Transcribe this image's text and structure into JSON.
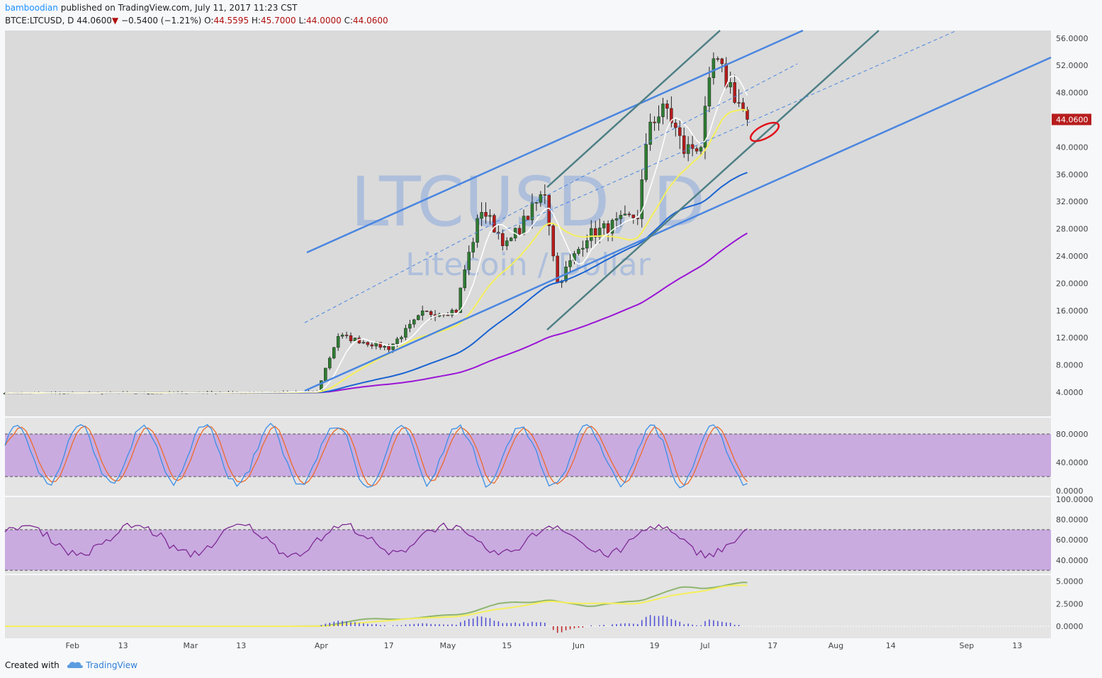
{
  "header": {
    "user": "bamboodian",
    "published_text": "published on TradingView.com, July 11, 2017 11:23 CST",
    "symbol": "BTCE:LTCUSD, D",
    "price": "44.0600",
    "change": "−0.5400 (−1.21%)",
    "o_label": "O:",
    "o": "44.5595",
    "h_label": "H:",
    "h": "45.7000",
    "l_label": "L:",
    "l": "44.0000",
    "c_label": "C:",
    "c": "44.0600"
  },
  "footer": {
    "created_with": "Created with",
    "brand": "TradingView"
  },
  "watermark": {
    "title": "LTCUSD, D",
    "subtitle": "Litecoin / Dollar"
  },
  "colors": {
    "bg_plot": "#dadada",
    "up": "#2e7d32",
    "down": "#b71c1c",
    "trend_blue": "#4a86e0",
    "trend_teal": "#4e7f85",
    "ma_white": "#ffffff",
    "ma_yellow": "#f5ef5c",
    "ma_blue": "#1a63d1",
    "ma_purple": "#9a14d6",
    "band_fill": "#c9abe0",
    "stoch_k": "#3a8ee6",
    "stoch_d": "#ee6a2a",
    "rsi": "#7e2a94",
    "annotation": "#e0101a"
  },
  "chart_data": [
    {
      "type": "candlestick",
      "title": "BTCE:LTCUSD, D",
      "x_tick_labels": [
        "Feb",
        "13",
        "Mar",
        "13",
        "Apr",
        "17",
        "May",
        "15",
        "Jun",
        "19",
        "Jul",
        "17",
        "Aug",
        "14",
        "Sep",
        "13"
      ],
      "y_tick_labels": [
        "56.0000",
        "52.0000",
        "48.0000",
        "40.0000",
        "36.0000",
        "32.0000",
        "28.0000",
        "24.0000",
        "20.0000",
        "16.0000",
        "12.0000",
        "8.0000",
        "4.0000"
      ],
      "last_price_label": "44.0600",
      "ylim": [
        0,
        57
      ],
      "date_range": [
        "2017-01-16",
        "2017-07-11"
      ],
      "approx_closes_by_month": [
        {
          "date": "2017-01-20",
          "close": 3.9
        },
        {
          "date": "2017-02-20",
          "close": 3.9
        },
        {
          "date": "2017-03-20",
          "close": 4.0
        },
        {
          "date": "2017-03-31",
          "close": 4.1
        },
        {
          "date": "2017-04-02",
          "close": 7.5
        },
        {
          "date": "2017-04-05",
          "close": 12.3
        },
        {
          "date": "2017-04-17",
          "close": 10.5
        },
        {
          "date": "2017-04-25",
          "close": 15.5
        },
        {
          "date": "2017-05-03",
          "close": 16.0
        },
        {
          "date": "2017-05-05",
          "close": 22.0
        },
        {
          "date": "2017-05-09",
          "close": 31.0
        },
        {
          "date": "2017-05-15",
          "close": 25.5
        },
        {
          "date": "2017-05-24",
          "close": 33.5
        },
        {
          "date": "2017-05-27",
          "close": 20.0
        },
        {
          "date": "2017-06-03",
          "close": 27.0
        },
        {
          "date": "2017-06-15",
          "close": 30.0
        },
        {
          "date": "2017-06-18",
          "close": 44.0
        },
        {
          "date": "2017-06-22",
          "close": 45.5
        },
        {
          "date": "2017-06-26",
          "close": 39.5
        },
        {
          "date": "2017-06-30",
          "close": 40.5
        },
        {
          "date": "2017-07-03",
          "close": 52.5
        },
        {
          "date": "2017-07-07",
          "close": 49.0
        },
        {
          "date": "2017-07-11",
          "close": 44.06
        }
      ],
      "overlays": [
        "white short MA",
        "yellow MA",
        "blue MA",
        "purple MA",
        "blue parallel channel",
        "teal parallel channel",
        "dashed blue trend lines",
        "red ellipse annotation"
      ]
    },
    {
      "type": "line",
      "panel": "stochastic",
      "y_tick_labels": [
        "80.0000",
        "40.0000",
        "0.0000"
      ],
      "ylim": [
        0,
        100
      ],
      "band": [
        20,
        80
      ],
      "series": [
        {
          "values": []
        },
        {
          "values": []
        }
      ]
    },
    {
      "type": "line",
      "panel": "rsi",
      "y_tick_labels": [
        "100.0000",
        "80.0000",
        "60.0000",
        "40.0000"
      ],
      "ylim": [
        30,
        100
      ],
      "band": [
        30,
        70
      ],
      "series": [
        {
          "values": []
        }
      ]
    },
    {
      "type": "line",
      "panel": "oscillator",
      "y_tick_labels": [
        "5.0000",
        "2.5000",
        "0.0000"
      ],
      "ylim": [
        -0.5,
        5.2
      ],
      "series": [
        {
          "values": []
        },
        {
          "values": []
        }
      ]
    }
  ]
}
